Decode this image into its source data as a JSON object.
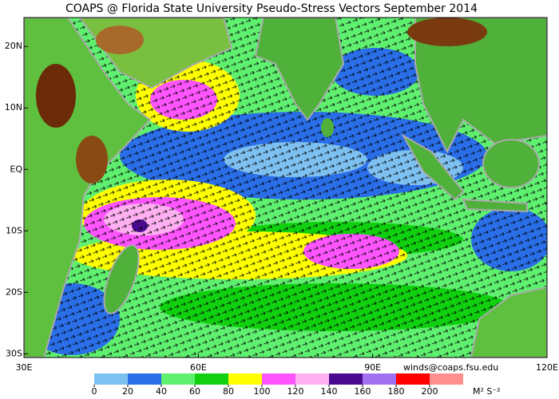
{
  "title": "COAPS @ Florida State University Pseudo-Stress Vectors September 2014",
  "credit": "winds@coaps.fsu.edu",
  "map": {
    "xlim": [
      30,
      120
    ],
    "ylim": [
      -30.6,
      24.7
    ],
    "xticks": [
      {
        "value": 30,
        "label": "30E"
      },
      {
        "value": 60,
        "label": "60E"
      },
      {
        "value": 90,
        "label": "90E"
      },
      {
        "value": 120,
        "label": "120E"
      }
    ],
    "yticks": [
      {
        "value": 20,
        "label": "20N"
      },
      {
        "value": 10,
        "label": "10N"
      },
      {
        "value": 0,
        "label": "EQ"
      },
      {
        "value": -10,
        "label": "10S"
      },
      {
        "value": -20,
        "label": "20S"
      },
      {
        "value": -30,
        "label": "30S"
      }
    ]
  },
  "colorbar": {
    "ticks": [
      0,
      20,
      40,
      60,
      80,
      100,
      120,
      140,
      160,
      180,
      200
    ],
    "colors": [
      "#7ec0f0",
      "#2a6ee8",
      "#60f070",
      "#10d010",
      "#ffff00",
      "#ff55ff",
      "#ffb0f0",
      "#4a0a90",
      "#a070f0",
      "#ff0000",
      "#ff9090"
    ],
    "unit": "M² S⁻²"
  }
}
